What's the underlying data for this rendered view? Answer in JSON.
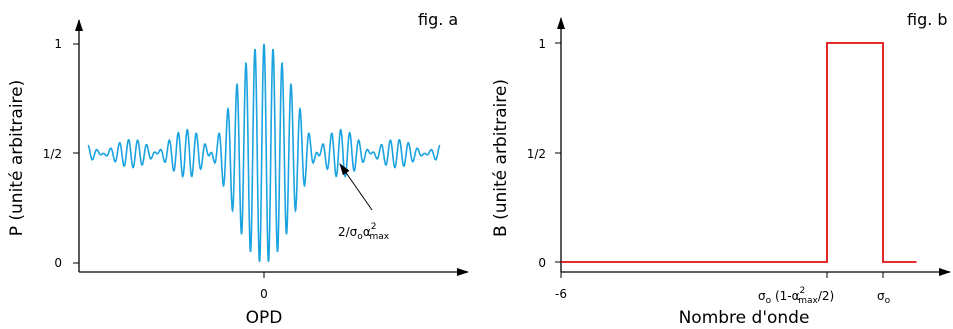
{
  "chart_data": [
    {
      "type": "line",
      "fig_label": "fig. a",
      "xlabel": "OPD",
      "ylabel": "P (unité arbitraire)",
      "x_ticks": [
        {
          "value": 0,
          "label": "0"
        }
      ],
      "y_ticks": [
        {
          "value": 0,
          "label": "0"
        },
        {
          "value": 0.5,
          "label": "1/2"
        },
        {
          "value": 1,
          "label": "1"
        }
      ],
      "xlim": [
        -1,
        1
      ],
      "ylim": [
        0,
        1
      ],
      "grid": false,
      "color": "#1aa3e0",
      "series": [
        {
          "description": "interferogram: cos(2*pi*sigma_o*OPD) modulated by sinc envelope",
          "fringe_count_per_unit": 19.5,
          "envelope_zero_at": 0.305,
          "values_range": [
            0.0,
            1.0
          ]
        }
      ],
      "annotation": {
        "text_main": "2/σ",
        "sub1": "o",
        "main2": "α",
        "sup": "2",
        "sub2": "max"
      }
    },
    {
      "type": "line",
      "fig_label": "fig. b",
      "xlabel": "Nombre d'onde",
      "ylabel": "B (unité arbitraire)",
      "x_ticks": [
        {
          "value": -6,
          "label": "-6"
        },
        {
          "value": 0.8,
          "label": "σo(1-α²max/2)"
        },
        {
          "value": 1,
          "label": "σo"
        }
      ],
      "y_ticks": [
        {
          "value": 0,
          "label": "0"
        },
        {
          "value": 0.5,
          "label": "1/2"
        },
        {
          "value": 1,
          "label": "1"
        }
      ],
      "ylim": [
        0,
        1
      ],
      "grid": false,
      "color": "#e01010",
      "series": [
        {
          "points": [
            [
              -6,
              0
            ],
            [
              0.8,
              0
            ],
            [
              0.8,
              1
            ],
            [
              1,
              1
            ],
            [
              1,
              0
            ],
            [
              1.12,
              0
            ]
          ]
        }
      ]
    }
  ]
}
